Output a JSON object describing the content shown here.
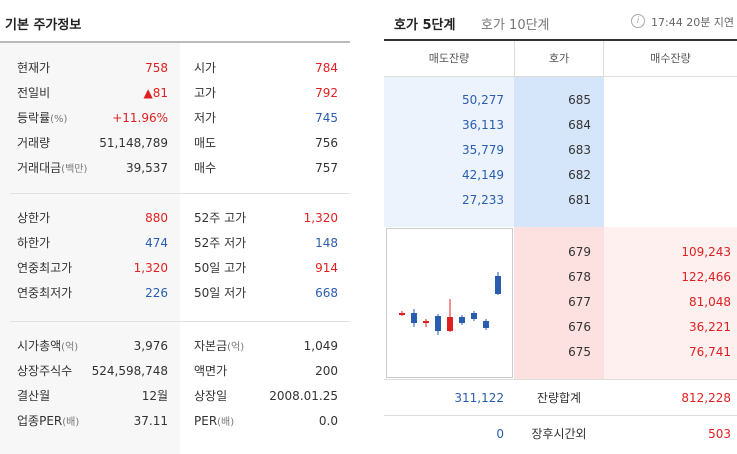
{
  "left": {
    "title": "기본 주가정보",
    "section1": [
      {
        "l1": "현재가",
        "v1": "758",
        "c1": "red",
        "l2": "시가",
        "v2": "784",
        "c2": "red"
      },
      {
        "l1": "전일비",
        "v1": "▲81",
        "c1": "red",
        "l2": "고가",
        "v2": "792",
        "c2": "red"
      },
      {
        "l1": "등락률",
        "l1s": "(%)",
        "v1": "+11.96%",
        "c1": "red",
        "l2": "저가",
        "v2": "745",
        "c2": "blue"
      },
      {
        "l1": "거래량",
        "v1": "51,148,789",
        "c1": "",
        "l2": "매도",
        "v2": "756",
        "c2": ""
      },
      {
        "l1": "거래대금",
        "l1s": "(백만)",
        "v1": "39,537",
        "c1": "",
        "l2": "매수",
        "v2": "757",
        "c2": ""
      }
    ],
    "section2": [
      {
        "l1": "상한가",
        "v1": "880",
        "c1": "red",
        "l2": "52주 고가",
        "v2": "1,320",
        "c2": "red"
      },
      {
        "l1": "하한가",
        "v1": "474",
        "c1": "blue",
        "l2": "52주 저가",
        "v2": "148",
        "c2": "blue"
      },
      {
        "l1": "연중최고가",
        "v1": "1,320",
        "c1": "red",
        "l2": "50일 고가",
        "v2": "914",
        "c2": "red"
      },
      {
        "l1": "연중최저가",
        "v1": "226",
        "c1": "blue",
        "l2": "50일 저가",
        "v2": "668",
        "c2": "blue"
      }
    ],
    "section3": [
      {
        "l1": "시가총액",
        "l1s": "(억)",
        "v1": "3,976",
        "c1": "",
        "l2": "자본금",
        "l2s": "(억)",
        "v2": "1,049",
        "c2": ""
      },
      {
        "l1": "상장주식수",
        "v1": "524,598,748",
        "c1": "",
        "l2": "액면가",
        "v2": "200",
        "c2": ""
      },
      {
        "l1": "결산월",
        "v1": "12월",
        "c1": "",
        "l2": "상장일",
        "v2": "2008.01.25",
        "c2": ""
      },
      {
        "l1": "업종PER",
        "l1s": "(배)",
        "v1": "37.11",
        "c1": "",
        "l2": "PER",
        "l2s": "(배)",
        "v2": "0.0",
        "c2": ""
      }
    ]
  },
  "right": {
    "tabs": [
      "호가 5단계",
      "호가 10단계"
    ],
    "info_icon": "i",
    "delay": "17:44 20분 지연",
    "headers": {
      "sell": "매도잔량",
      "price": "호가",
      "buy": "매수잔량"
    },
    "asks": [
      {
        "qty": "50,277",
        "price": "685"
      },
      {
        "qty": "36,113",
        "price": "684"
      },
      {
        "qty": "35,779",
        "price": "683"
      },
      {
        "qty": "42,149",
        "price": "682"
      },
      {
        "qty": "27,233",
        "price": "681"
      }
    ],
    "bids": [
      {
        "price": "679",
        "qty": "109,243"
      },
      {
        "price": "678",
        "qty": "122,466"
      },
      {
        "price": "677",
        "qty": "81,048"
      },
      {
        "price": "676",
        "qty": "36,221"
      },
      {
        "price": "675",
        "qty": "76,741"
      }
    ],
    "total": {
      "sell": "311,122",
      "label": "잔량합계",
      "buy": "812,228"
    },
    "afterhours": {
      "sell": "0",
      "label": "장후시간외",
      "buy": "503"
    }
  },
  "colors": {
    "up": "#e02020",
    "down": "#2a5db0",
    "ask_bg": "#ecf3fc",
    "bid_bg": "#fff0f0"
  }
}
